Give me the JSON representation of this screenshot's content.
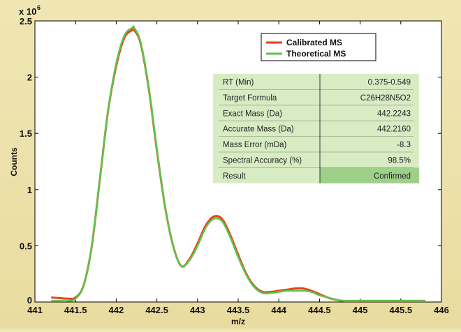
{
  "chart_data": {
    "type": "line",
    "xlabel": "m/z",
    "ylabel": "Counts",
    "y_multiplier_label": "x 10",
    "y_multiplier_exponent": "6",
    "xlim": [
      441,
      446
    ],
    "ylim": [
      0,
      2.5
    ],
    "x_ticks": [
      "441",
      "441.5",
      "442",
      "442.5",
      "443",
      "443.5",
      "444",
      "444.5",
      "445",
      "445.5",
      "446"
    ],
    "y_ticks": [
      "0",
      "0.5",
      "1",
      "1.5",
      "2",
      "2.5"
    ],
    "legend_position": "top-right",
    "series": [
      {
        "name": "Calibrated MS",
        "color": "#e8401c",
        "x": [
          441.2,
          441.3,
          441.4,
          441.5,
          441.6,
          441.7,
          441.8,
          441.9,
          442.0,
          442.1,
          442.2,
          442.22,
          442.3,
          442.4,
          442.5,
          442.6,
          442.7,
          442.8,
          442.9,
          443.0,
          443.1,
          443.2,
          443.3,
          443.4,
          443.5,
          443.6,
          443.7,
          443.8,
          443.9,
          444.0,
          444.1,
          444.2,
          444.3,
          444.4,
          444.5,
          444.6,
          444.7,
          444.8,
          445.0,
          445.2,
          445.5,
          445.8
        ],
        "values": [
          0.04,
          0.035,
          0.03,
          0.04,
          0.15,
          0.5,
          1.1,
          1.7,
          2.1,
          2.35,
          2.42,
          2.42,
          2.3,
          1.9,
          1.35,
          0.85,
          0.5,
          0.32,
          0.38,
          0.52,
          0.68,
          0.76,
          0.74,
          0.6,
          0.42,
          0.25,
          0.14,
          0.09,
          0.09,
          0.1,
          0.11,
          0.12,
          0.12,
          0.1,
          0.07,
          0.04,
          0.02,
          0.01,
          0.01,
          0.01,
          0.01,
          0.01
        ]
      },
      {
        "name": "Theoretical MS",
        "color": "#5ec44c",
        "x": [
          441.2,
          441.3,
          441.4,
          441.5,
          441.6,
          441.7,
          441.8,
          441.9,
          442.0,
          442.1,
          442.2,
          442.22,
          442.3,
          442.4,
          442.5,
          442.6,
          442.7,
          442.8,
          442.9,
          443.0,
          443.1,
          443.2,
          443.3,
          443.4,
          443.5,
          443.6,
          443.7,
          443.8,
          443.9,
          444.0,
          444.1,
          444.2,
          444.3,
          444.4,
          444.5,
          444.6,
          444.7,
          444.8,
          445.0,
          445.2,
          445.5,
          445.8
        ],
        "values": [
          0.01,
          0.01,
          0.01,
          0.03,
          0.15,
          0.5,
          1.1,
          1.7,
          2.12,
          2.37,
          2.44,
          2.44,
          2.31,
          1.91,
          1.36,
          0.85,
          0.5,
          0.32,
          0.37,
          0.5,
          0.66,
          0.74,
          0.72,
          0.58,
          0.4,
          0.24,
          0.13,
          0.08,
          0.08,
          0.09,
          0.1,
          0.1,
          0.1,
          0.09,
          0.06,
          0.04,
          0.02,
          0.01,
          0.01,
          0.01,
          0.01,
          0.01
        ]
      }
    ]
  },
  "table": {
    "rows": [
      {
        "label": "RT (Min)",
        "value": "0.375-0.549"
      },
      {
        "label": "Target Formula",
        "value": "C26H28N5O2"
      },
      {
        "label": "Exact Mass (Da)",
        "value": "442.2243"
      },
      {
        "label": "Accurate Mass (Da)",
        "value": "442.2160"
      },
      {
        "label": "Mass Error (mDa)",
        "value": "-8.3"
      },
      {
        "label": "Spectral Accuracy (%)",
        "value": "98.5%"
      },
      {
        "label": "Result",
        "value": "Confirmed"
      }
    ]
  },
  "colors": {
    "table_bg": "#d8ecc4",
    "table_result_highlight": "#9fd08a",
    "plot_bg": "#ffffff"
  }
}
